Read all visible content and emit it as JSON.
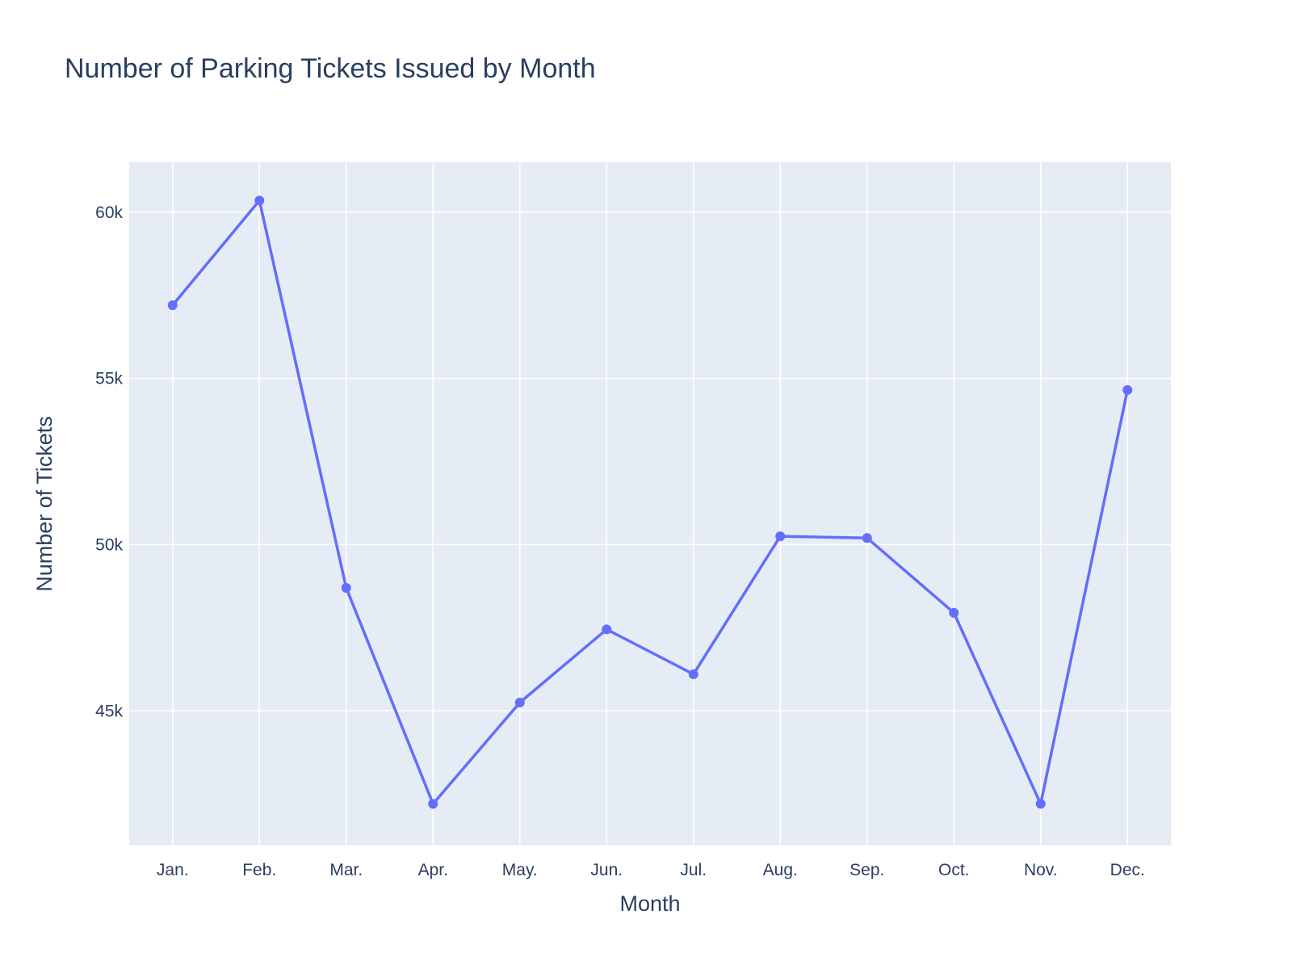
{
  "chart_data": {
    "type": "line",
    "title": "Number of Parking Tickets Issued by Month",
    "xlabel": "Month",
    "ylabel": "Number of Tickets",
    "categories": [
      "Jan.",
      "Feb.",
      "Mar.",
      "Apr.",
      "May.",
      "Jun.",
      "Jul.",
      "Aug.",
      "Sep.",
      "Oct.",
      "Nov.",
      "Dec."
    ],
    "series": [
      {
        "values": [
          57200,
          60350,
          48700,
          42200,
          45250,
          47450,
          46100,
          50250,
          50200,
          47950,
          42200,
          54650
        ]
      }
    ],
    "ylim": [
      40950,
      61500
    ],
    "yticks": [
      45000,
      50000,
      55000,
      60000
    ],
    "ytick_labels": [
      "45k",
      "50k",
      "55k",
      "60k"
    ],
    "grid": true,
    "colors": {
      "line": "#636efa",
      "plot_background": "#e5ecf6",
      "grid": "#ffffff",
      "text": "#2a3f5f"
    }
  }
}
